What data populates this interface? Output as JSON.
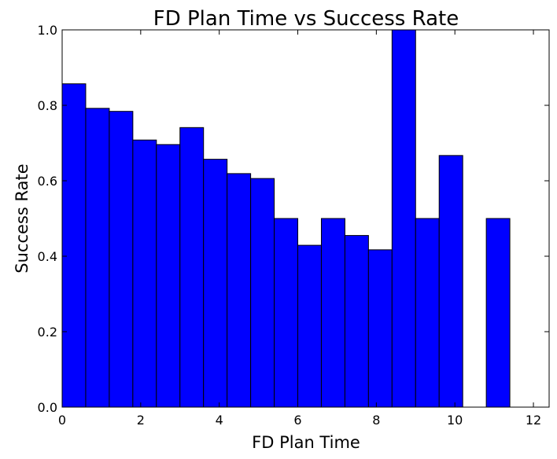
{
  "chart_data": {
    "type": "bar",
    "title": "FD Plan Time vs Success Rate",
    "xlabel": "FD Plan Time",
    "ylabel": "Success Rate",
    "xlim": [
      0,
      12.4
    ],
    "ylim": [
      0.0,
      1.0
    ],
    "xticks": [
      0,
      2,
      4,
      6,
      8,
      10,
      12
    ],
    "xtick_labels": [
      "0",
      "2",
      "4",
      "6",
      "8",
      "10",
      "12"
    ],
    "yticks": [
      0.0,
      0.2,
      0.4,
      0.6,
      0.8,
      1.0
    ],
    "ytick_labels": [
      "0.0",
      "0.2",
      "0.4",
      "0.6",
      "0.8",
      "1.0"
    ],
    "bar_width": 0.6,
    "bar_color": "#0000ff",
    "edge_color": "#000000",
    "grid": false,
    "legend": "none",
    "bars": [
      {
        "x0": 0.0,
        "value": 0.857
      },
      {
        "x0": 0.6,
        "value": 0.792
      },
      {
        "x0": 1.2,
        "value": 0.784
      },
      {
        "x0": 1.8,
        "value": 0.708
      },
      {
        "x0": 2.4,
        "value": 0.696
      },
      {
        "x0": 3.0,
        "value": 0.741
      },
      {
        "x0": 3.6,
        "value": 0.657
      },
      {
        "x0": 4.2,
        "value": 0.619
      },
      {
        "x0": 4.8,
        "value": 0.606
      },
      {
        "x0": 5.4,
        "value": 0.5
      },
      {
        "x0": 6.0,
        "value": 0.429
      },
      {
        "x0": 6.6,
        "value": 0.5
      },
      {
        "x0": 7.2,
        "value": 0.455
      },
      {
        "x0": 7.8,
        "value": 0.417
      },
      {
        "x0": 8.4,
        "value": 1.0
      },
      {
        "x0": 9.0,
        "value": 0.5
      },
      {
        "x0": 9.6,
        "value": 0.667
      },
      {
        "x0": 10.8,
        "value": 0.5
      }
    ]
  }
}
